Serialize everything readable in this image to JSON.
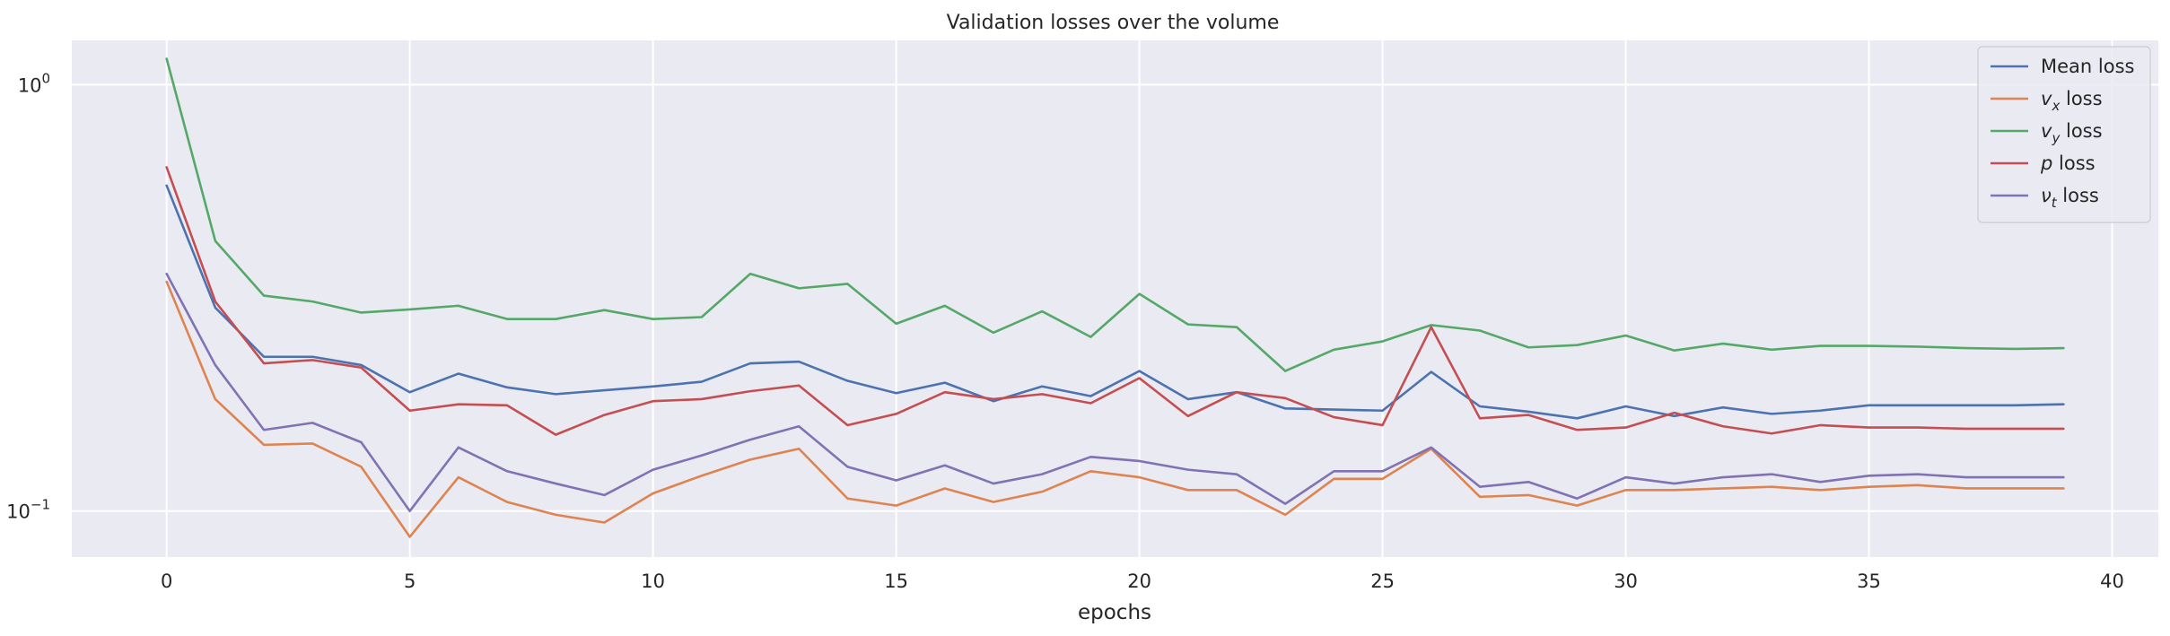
{
  "chart_data": {
    "type": "line",
    "title": "Validation losses over the volume",
    "xlabel": "epochs",
    "ylabel": "",
    "yscale": "log",
    "xlim": [
      -1.95,
      40.95
    ],
    "ylim": [
      0.078,
      1.27
    ],
    "grid": true,
    "legend_position": "top-right",
    "x_ticks": [
      0,
      5,
      10,
      15,
      20,
      25,
      30,
      35,
      40
    ],
    "x_tick_labels": [
      "0",
      "5",
      "10",
      "15",
      "20",
      "25",
      "30",
      "35",
      "40"
    ],
    "y_ticks": [
      0.1,
      1
    ],
    "y_tick_labels": [
      {
        "base": "10",
        "exp": "−1"
      },
      {
        "base": "10",
        "exp": "0"
      }
    ],
    "x": [
      0,
      1,
      2,
      3,
      4,
      5,
      6,
      7,
      8,
      9,
      10,
      11,
      12,
      13,
      14,
      15,
      16,
      17,
      18,
      19,
      20,
      21,
      22,
      23,
      24,
      25,
      26,
      27,
      28,
      29,
      30,
      31,
      32,
      33,
      34,
      35,
      36,
      37,
      38,
      39
    ],
    "series": [
      {
        "name": "Mean loss",
        "legend_main": "Mean loss",
        "legend_sub": "",
        "legend_suffix": "",
        "color": "#4c72b0",
        "values": [
          0.58,
          0.3,
          0.23,
          0.23,
          0.22,
          0.19,
          0.21,
          0.195,
          0.188,
          0.192,
          0.196,
          0.201,
          0.222,
          0.224,
          0.202,
          0.189,
          0.2,
          0.181,
          0.196,
          0.186,
          0.213,
          0.183,
          0.19,
          0.174,
          0.173,
          0.172,
          0.212,
          0.176,
          0.171,
          0.165,
          0.176,
          0.167,
          0.175,
          0.169,
          0.172,
          0.177,
          0.177,
          0.177,
          0.177,
          0.178
        ]
      },
      {
        "name": "v_x loss",
        "legend_main": "v",
        "legend_sub": "x",
        "legend_suffix": " loss",
        "color": "#dd8452",
        "values": [
          0.345,
          0.183,
          0.143,
          0.144,
          0.127,
          0.087,
          0.12,
          0.105,
          0.098,
          0.094,
          0.11,
          0.121,
          0.132,
          0.14,
          0.107,
          0.103,
          0.113,
          0.105,
          0.111,
          0.124,
          0.12,
          0.112,
          0.112,
          0.098,
          0.119,
          0.119,
          0.14,
          0.108,
          0.109,
          0.103,
          0.112,
          0.112,
          0.113,
          0.114,
          0.112,
          0.114,
          0.115,
          0.113,
          0.113,
          0.113
        ]
      },
      {
        "name": "v_y loss",
        "legend_main": "v",
        "legend_sub": "y",
        "legend_suffix": " loss",
        "color": "#55a868",
        "values": [
          1.15,
          0.43,
          0.32,
          0.31,
          0.292,
          0.297,
          0.303,
          0.282,
          0.282,
          0.296,
          0.282,
          0.285,
          0.36,
          0.333,
          0.341,
          0.275,
          0.303,
          0.262,
          0.294,
          0.256,
          0.323,
          0.274,
          0.27,
          0.213,
          0.239,
          0.25,
          0.273,
          0.265,
          0.242,
          0.245,
          0.258,
          0.238,
          0.247,
          0.239,
          0.244,
          0.244,
          0.243,
          0.241,
          0.24,
          0.241
        ]
      },
      {
        "name": "p loss",
        "legend_main": "p",
        "legend_sub": "",
        "legend_suffix": " loss",
        "color": "#c44e52",
        "values": [
          0.64,
          0.31,
          0.222,
          0.226,
          0.217,
          0.172,
          0.178,
          0.177,
          0.151,
          0.168,
          0.181,
          0.183,
          0.191,
          0.197,
          0.159,
          0.169,
          0.19,
          0.183,
          0.188,
          0.179,
          0.205,
          0.167,
          0.19,
          0.184,
          0.166,
          0.159,
          0.27,
          0.165,
          0.168,
          0.155,
          0.157,
          0.17,
          0.158,
          0.152,
          0.159,
          0.157,
          0.157,
          0.156,
          0.156,
          0.156
        ]
      },
      {
        "name": "nu_t loss",
        "legend_main": "ν",
        "legend_sub": "t",
        "legend_suffix": " loss",
        "color": "#8172b3",
        "values": [
          0.36,
          0.22,
          0.155,
          0.161,
          0.145,
          0.1,
          0.141,
          0.124,
          0.116,
          0.109,
          0.125,
          0.135,
          0.147,
          0.158,
          0.127,
          0.118,
          0.128,
          0.116,
          0.122,
          0.134,
          0.131,
          0.125,
          0.122,
          0.104,
          0.124,
          0.124,
          0.141,
          0.114,
          0.117,
          0.107,
          0.12,
          0.116,
          0.12,
          0.122,
          0.117,
          0.121,
          0.122,
          0.12,
          0.12,
          0.12
        ]
      }
    ]
  }
}
